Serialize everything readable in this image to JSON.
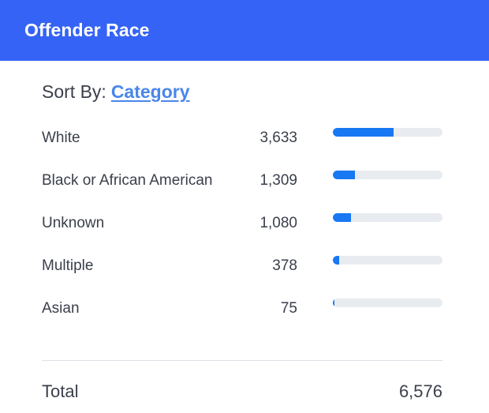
{
  "header": {
    "title": "Offender Race"
  },
  "sort": {
    "prefix": "Sort By:",
    "link": "Category"
  },
  "rows": [
    {
      "label": "White",
      "value": "3,633",
      "fraction": 0.553
    },
    {
      "label": "Black or African American",
      "value": "1,309",
      "fraction": 0.199
    },
    {
      "label": "Unknown",
      "value": "1,080",
      "fraction": 0.164
    },
    {
      "label": "Multiple",
      "value": "378",
      "fraction": 0.057
    },
    {
      "label": "Asian",
      "value": "75",
      "fraction": 0.011
    }
  ],
  "total": {
    "label": "Total",
    "value": "6,576"
  },
  "colors": {
    "header_bg": "#3563f5",
    "bar_fill": "#1877f2",
    "bar_track": "#e8ebef",
    "link": "#4a86ea"
  }
}
